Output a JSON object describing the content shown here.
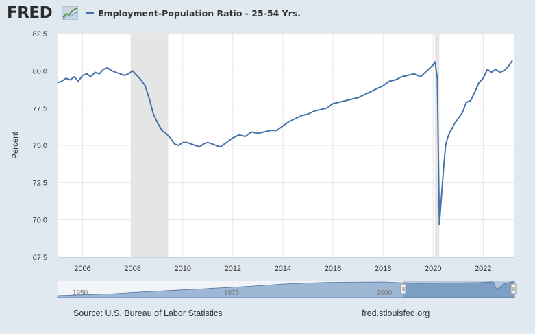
{
  "header": {
    "logo_text": "FRED",
    "logo_icon": "line-chart-icon",
    "series_title": "Employment-Population Ratio - 25-54 Yrs.",
    "series_color": "#4572a7"
  },
  "footer": {
    "source": "Source: U.S. Bureau of Labor Statistics",
    "url": "fred.stlouisfed.org"
  },
  "chart_data": {
    "type": "line",
    "title": "Employment-Population Ratio - 25-54 Yrs.",
    "xlabel": "",
    "ylabel": "Percent",
    "ylim": [
      67.5,
      82.5
    ],
    "xlim": [
      2005.0,
      2023.25
    ],
    "yticks": [
      "67.5",
      "70.0",
      "72.5",
      "75.0",
      "77.5",
      "80.0",
      "82.5"
    ],
    "xticks": [
      "2006",
      "2008",
      "2010",
      "2012",
      "2014",
      "2016",
      "2018",
      "2020",
      "2022"
    ],
    "grid": true,
    "recession_shading": [
      [
        2007.92,
        2009.42
      ],
      [
        2020.08,
        2020.25
      ]
    ],
    "navigator_ticks": [
      "1950",
      "1975",
      "2000"
    ],
    "series": [
      {
        "name": "Employment-Population Ratio - 25-54 Yrs.",
        "color": "#4572a7",
        "x": [
          2005.0,
          2005.17,
          2005.33,
          2005.5,
          2005.67,
          2005.83,
          2006.0,
          2006.17,
          2006.33,
          2006.5,
          2006.67,
          2006.83,
          2007.0,
          2007.17,
          2007.33,
          2007.5,
          2007.67,
          2007.83,
          2008.0,
          2008.17,
          2008.33,
          2008.5,
          2008.67,
          2008.83,
          2009.0,
          2009.17,
          2009.33,
          2009.5,
          2009.67,
          2009.83,
          2010.0,
          2010.17,
          2010.33,
          2010.5,
          2010.67,
          2010.83,
          2011.0,
          2011.17,
          2011.33,
          2011.5,
          2011.67,
          2011.83,
          2012.0,
          2012.25,
          2012.5,
          2012.75,
          2013.0,
          2013.25,
          2013.5,
          2013.75,
          2014.0,
          2014.25,
          2014.5,
          2014.75,
          2015.0,
          2015.25,
          2015.5,
          2015.75,
          2016.0,
          2016.25,
          2016.5,
          2016.75,
          2017.0,
          2017.25,
          2017.5,
          2017.75,
          2018.0,
          2018.25,
          2018.5,
          2018.75,
          2019.0,
          2019.25,
          2019.5,
          2019.75,
          2020.0,
          2020.08,
          2020.17,
          2020.25,
          2020.33,
          2020.42,
          2020.5,
          2020.58,
          2020.67,
          2020.75,
          2020.83,
          2021.0,
          2021.17,
          2021.33,
          2021.5,
          2021.67,
          2021.83,
          2022.0,
          2022.17,
          2022.33,
          2022.5,
          2022.67,
          2022.83,
          2023.0,
          2023.17
        ],
        "values": [
          79.2,
          79.3,
          79.5,
          79.4,
          79.6,
          79.3,
          79.7,
          79.8,
          79.6,
          79.9,
          79.8,
          80.1,
          80.2,
          80.0,
          79.9,
          79.8,
          79.7,
          79.8,
          80.0,
          79.7,
          79.4,
          79.0,
          78.1,
          77.1,
          76.5,
          76.0,
          75.8,
          75.5,
          75.1,
          75.0,
          75.2,
          75.2,
          75.1,
          75.0,
          74.9,
          75.1,
          75.2,
          75.1,
          75.0,
          74.9,
          75.1,
          75.3,
          75.5,
          75.7,
          75.6,
          75.9,
          75.8,
          75.9,
          76.0,
          76.0,
          76.3,
          76.6,
          76.8,
          77.0,
          77.1,
          77.3,
          77.4,
          77.5,
          77.8,
          77.9,
          78.0,
          78.1,
          78.2,
          78.4,
          78.6,
          78.8,
          79.0,
          79.3,
          79.4,
          79.6,
          79.7,
          79.8,
          79.6,
          80.0,
          80.4,
          80.6,
          79.5,
          69.7,
          71.5,
          73.5,
          75.0,
          75.5,
          75.9,
          76.1,
          76.4,
          76.8,
          77.2,
          77.9,
          78.0,
          78.6,
          79.2,
          79.5,
          80.1,
          79.9,
          80.1,
          79.9,
          80.0,
          80.3,
          80.7
        ]
      }
    ]
  }
}
